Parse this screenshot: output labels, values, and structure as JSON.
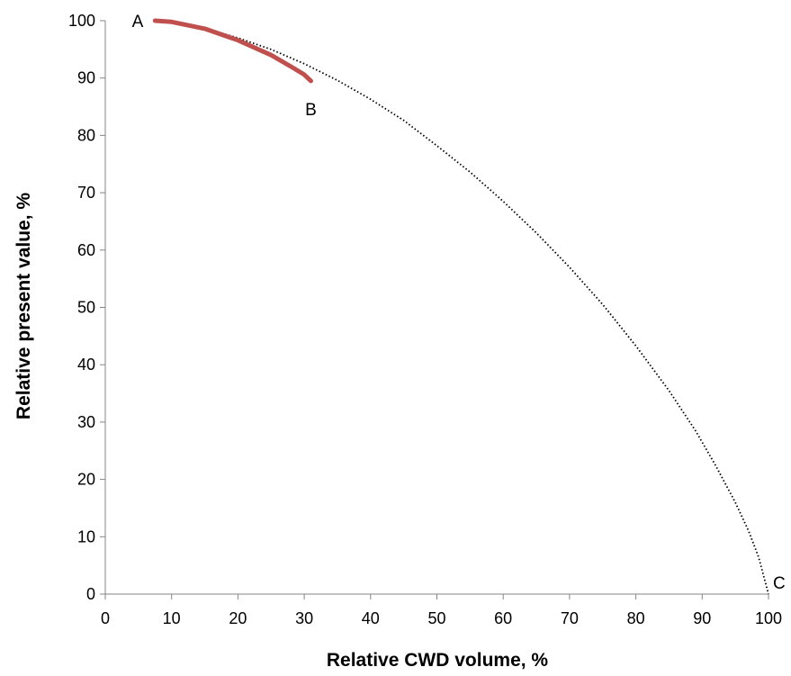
{
  "chart_data": {
    "type": "line",
    "title": "",
    "xlabel": "Relative CWD volume, %",
    "ylabel": "Relative present value, %",
    "xlim": [
      0,
      100
    ],
    "ylim": [
      0,
      100
    ],
    "x_ticks": [
      0,
      10,
      20,
      30,
      40,
      50,
      60,
      70,
      80,
      90,
      100
    ],
    "y_ticks": [
      0,
      10,
      20,
      30,
      40,
      50,
      60,
      70,
      80,
      90,
      100
    ],
    "grid": false,
    "legend": "none",
    "series": [
      {
        "style": "dotted",
        "color": "#000000",
        "x": [
          7.5,
          10,
          15,
          20,
          25,
          30,
          35,
          40,
          45,
          50,
          55,
          60,
          65,
          70,
          75,
          80,
          85,
          89,
          92,
          95,
          97,
          98.5,
          100
        ],
        "y": [
          100,
          99.8,
          98.7,
          97.0,
          95.0,
          92.5,
          89.6,
          86.3,
          82.6,
          78.2,
          73.6,
          68.5,
          63.0,
          57.0,
          50.5,
          43.3,
          35.5,
          28.5,
          22.5,
          16.0,
          11.0,
          6.5,
          0
        ]
      },
      {
        "style": "solid",
        "color": "#C0504D",
        "x": [
          7.5,
          10,
          15,
          20,
          25,
          28,
          30,
          31
        ],
        "y": [
          100,
          99.8,
          98.6,
          96.6,
          94.0,
          92.0,
          90.6,
          89.5
        ]
      }
    ],
    "annotations": [
      {
        "text": "A",
        "x": 7.5,
        "y": 100
      },
      {
        "text": "B",
        "x": 31,
        "y": 89.5
      },
      {
        "text": "C",
        "x": 100,
        "y": 0
      }
    ]
  }
}
